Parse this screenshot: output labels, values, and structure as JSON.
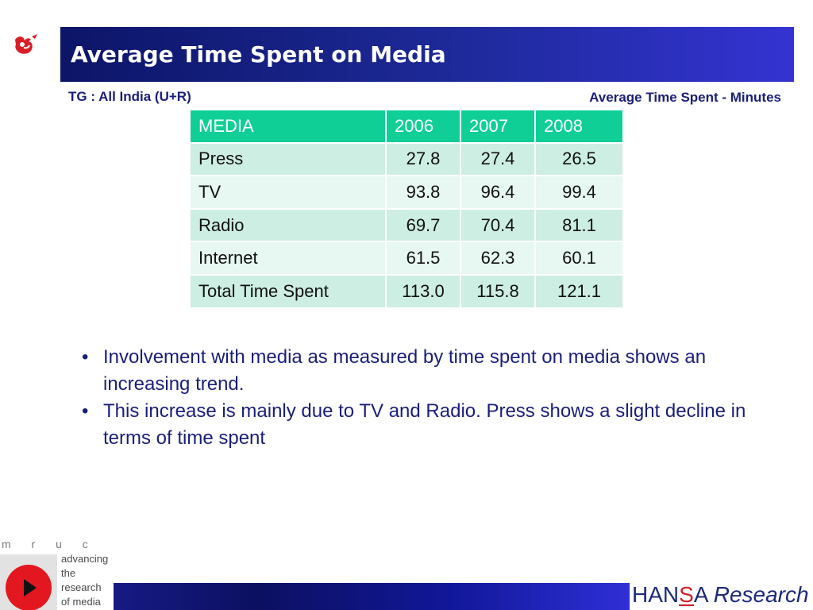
{
  "header": {
    "title": "Average Time Spent on Media",
    "logo_icon": "bird-logo-icon"
  },
  "target_group": "TG : All India (U+R)",
  "unit_label": "Average Time Spent - Minutes",
  "table": {
    "headers": [
      "MEDIA",
      "2006",
      "2007",
      "2008"
    ],
    "rows": [
      {
        "media": "Press",
        "y2006": "27.8",
        "y2007": "27.4",
        "y2008": "26.5"
      },
      {
        "media": "TV",
        "y2006": "93.8",
        "y2007": "96.4",
        "y2008": "99.4"
      },
      {
        "media": "Radio",
        "y2006": "69.7",
        "y2007": "70.4",
        "y2008": "81.1"
      },
      {
        "media": "Internet",
        "y2006": "61.5",
        "y2007": "62.3",
        "y2008": "60.1"
      },
      {
        "media": "Total Time Spent",
        "y2006": "113.0",
        "y2007": "115.8",
        "y2008": "121.1"
      }
    ]
  },
  "bullets": [
    "Involvement with media as measured by time spent on media shows an increasing trend.",
    "This increase is mainly due to TV and Radio. Press shows a slight decline in terms of time spent"
  ],
  "footer": {
    "mruc_letters": "m r u c",
    "mruc_tagline": [
      "advancing",
      "the",
      "research",
      "of media"
    ],
    "brand_prefix": "HAN",
    "brand_s": "S",
    "brand_suffix": "A",
    "brand_research": "Research"
  },
  "colors": {
    "title_bar": "#1e2a9a",
    "table_header": "#0fcf96",
    "row_dark": "#cdeee2",
    "row_light": "#e7f7f1",
    "text_navy": "#1a1e7a",
    "accent_red": "#d21f2b"
  }
}
